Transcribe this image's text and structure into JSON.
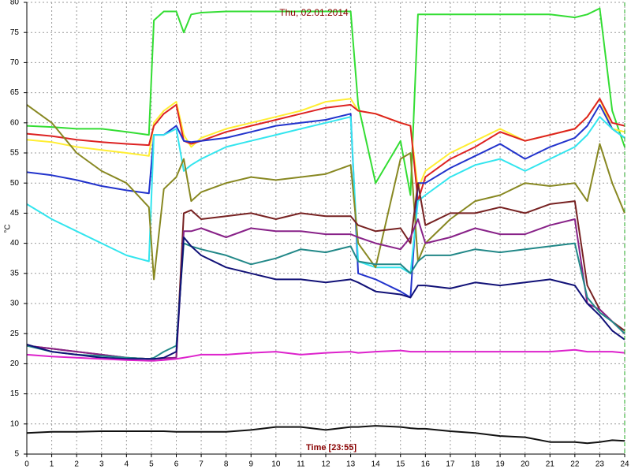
{
  "chart_data": {
    "type": "line",
    "title": "Thu, 02.01.2014",
    "x_label": "Time [23:55]",
    "y_label": "°C",
    "x": [
      0,
      1,
      2,
      3,
      4,
      4.9,
      5.1,
      5.5,
      6,
      6.3,
      6.6,
      7,
      8,
      9,
      10,
      11,
      12,
      13,
      13.3,
      14,
      15,
      15.4,
      15.7,
      16,
      17,
      18,
      19,
      20,
      21,
      22,
      22.5,
      23,
      23.5,
      24
    ],
    "xlim": [
      0,
      24
    ],
    "xticks": [
      0,
      1,
      2,
      3,
      4,
      5,
      6,
      7,
      8,
      9,
      10,
      11,
      12,
      13,
      14,
      15,
      16,
      17,
      18,
      19,
      20,
      21,
      22,
      23,
      24
    ],
    "ylim": [
      5,
      80
    ],
    "yticks": [
      5,
      10,
      15,
      20,
      25,
      30,
      35,
      40,
      45,
      50,
      55,
      60,
      65,
      70,
      75,
      80
    ],
    "grid": true,
    "series": [
      {
        "color": "#33dd33",
        "values": [
          59.5,
          59.3,
          59,
          59,
          58.5,
          58,
          77,
          78.5,
          78.5,
          75,
          78,
          78.3,
          78.5,
          78.5,
          78.5,
          78.5,
          78.5,
          78.5,
          63,
          50,
          57,
          48,
          78,
          78,
          78,
          78,
          78,
          78,
          78,
          77.5,
          78,
          79,
          62,
          56
        ]
      },
      {
        "color": "#ffee33",
        "values": [
          57.2,
          56.8,
          56,
          55.5,
          55,
          54.5,
          60,
          62,
          63.5,
          58,
          56,
          57.5,
          59,
          60,
          61,
          62,
          63.5,
          64,
          62,
          61.5,
          60,
          59.5,
          49,
          52,
          55,
          57,
          59,
          57,
          58,
          59,
          61,
          64,
          59,
          58.5
        ]
      },
      {
        "color": "#dd2222",
        "values": [
          58.2,
          57.8,
          57.2,
          56.8,
          56.5,
          56.3,
          59.5,
          61.5,
          63,
          57,
          56.5,
          57,
          58.5,
          59.5,
          60.5,
          61.5,
          62.5,
          63,
          62,
          61.5,
          60,
          59.5,
          47,
          51,
          54,
          56,
          58.5,
          57,
          58,
          59,
          61,
          64,
          60,
          59.5
        ]
      },
      {
        "color": "#2233cc",
        "values": [
          51.8,
          51.3,
          50.5,
          49.5,
          48.8,
          48.3,
          58,
          58,
          59.5,
          57,
          56.8,
          57,
          57.5,
          58.5,
          59.5,
          60,
          60.5,
          61.5,
          35,
          34,
          32,
          31,
          50,
          50,
          52.5,
          54.5,
          56.5,
          54,
          56,
          57.5,
          59.5,
          63,
          59,
          57.5
        ]
      },
      {
        "color": "#33e5ee",
        "values": [
          46.5,
          44,
          42,
          40,
          38,
          37,
          58,
          58,
          59,
          52,
          53,
          54,
          56,
          57,
          58,
          59,
          60,
          61,
          37,
          36,
          36,
          35,
          47,
          48,
          51,
          53,
          54,
          52,
          54,
          56,
          58,
          61,
          59,
          57.5
        ]
      },
      {
        "color": "#888822",
        "values": [
          63,
          60,
          55,
          52,
          50,
          46,
          34,
          49,
          51,
          54,
          47,
          48.5,
          50,
          51,
          50.5,
          51,
          51.5,
          53,
          40,
          36,
          54,
          55,
          37,
          40,
          44,
          47,
          48,
          50,
          49.5,
          50,
          47,
          56.5,
          50,
          45
        ]
      },
      {
        "color": "#772222",
        "values": [
          23,
          22.5,
          22,
          21.5,
          21,
          20.8,
          20.8,
          20.9,
          21,
          45,
          45.5,
          44,
          44.5,
          45,
          44,
          45,
          44.5,
          44.5,
          43,
          42,
          42.5,
          40,
          50,
          43,
          45,
          45,
          46,
          45,
          46.5,
          47,
          33,
          29,
          27,
          25.5
        ]
      },
      {
        "color": "#882288",
        "values": [
          23,
          22.5,
          22,
          21.5,
          21,
          20.8,
          20.8,
          20.9,
          21,
          42,
          42,
          42.5,
          41,
          42.5,
          42,
          42,
          41.5,
          41.5,
          41,
          40,
          39,
          41,
          44,
          40,
          41,
          42.5,
          41.5,
          41.5,
          43,
          44,
          30,
          29,
          27,
          25
        ]
      },
      {
        "color": "#228888",
        "values": [
          23,
          22,
          21.5,
          21.3,
          21,
          20.8,
          21,
          22,
          23,
          40,
          39.5,
          39,
          38,
          36.5,
          37.5,
          39,
          38.5,
          39.5,
          37,
          36.5,
          36.5,
          35,
          37,
          38,
          38,
          39,
          38.5,
          39,
          39.5,
          40,
          31,
          28.5,
          27,
          25
        ]
      },
      {
        "color": "#111177",
        "values": [
          23.2,
          22,
          21.5,
          21,
          20.8,
          20.8,
          20.8,
          21,
          22,
          41,
          39.5,
          38,
          36,
          35,
          34,
          34,
          33.5,
          34,
          33.5,
          32,
          31.5,
          31,
          33,
          33,
          32.5,
          33.5,
          33,
          33.5,
          34,
          33,
          30,
          28,
          25.5,
          24
        ]
      },
      {
        "color": "#dd22cc",
        "values": [
          21.5,
          21.2,
          21,
          20.8,
          20.6,
          20.5,
          20.5,
          20.6,
          20.8,
          21,
          21.2,
          21.5,
          21.5,
          21.8,
          22,
          21.5,
          21.8,
          22,
          21.8,
          22,
          22.2,
          22,
          22,
          22,
          22,
          22,
          22,
          22,
          22,
          22.3,
          22,
          22,
          22,
          21.8
        ]
      },
      {
        "color": "#111111",
        "values": [
          8.5,
          8.7,
          8.7,
          8.8,
          8.8,
          8.8,
          8.8,
          8.8,
          8.7,
          8.7,
          8.7,
          8.7,
          8.7,
          9,
          9.5,
          9.5,
          9,
          9.5,
          9.5,
          9.7,
          9.5,
          9.3,
          9.2,
          9.2,
          8.8,
          8.5,
          8,
          7.8,
          7,
          7,
          6.8,
          7,
          7.3,
          7.2
        ]
      }
    ]
  }
}
